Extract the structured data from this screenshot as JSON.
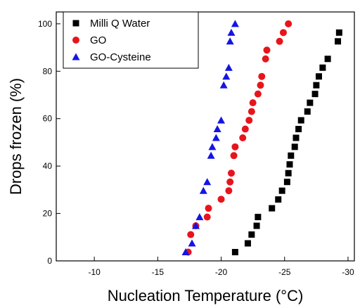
{
  "chart_data": {
    "type": "scatter",
    "xlabel": "Nucleation Temperature (°C)",
    "ylabel": "Drops frozen (%)",
    "xlim": [
      -7,
      -30.5
    ],
    "ylim": [
      0,
      105
    ],
    "x_ticks": [
      -10,
      -15,
      -20,
      -25,
      -30
    ],
    "y_ticks": [
      0,
      20,
      40,
      60,
      80,
      100
    ],
    "legend_position": "top-left",
    "series": [
      {
        "name": "Milli Q Water",
        "color": "#000000",
        "marker": "square",
        "points": [
          [
            -21.1,
            3.7
          ],
          [
            -22.1,
            7.4
          ],
          [
            -22.4,
            11.1
          ],
          [
            -22.8,
            14.8
          ],
          [
            -22.9,
            18.5
          ],
          [
            -24.0,
            22.2
          ],
          [
            -24.5,
            25.9
          ],
          [
            -24.8,
            29.6
          ],
          [
            -25.2,
            33.3
          ],
          [
            -25.3,
            37.0
          ],
          [
            -25.4,
            40.7
          ],
          [
            -25.5,
            44.4
          ],
          [
            -25.8,
            48.1
          ],
          [
            -25.9,
            51.9
          ],
          [
            -26.1,
            55.6
          ],
          [
            -26.3,
            59.3
          ],
          [
            -26.8,
            63.0
          ],
          [
            -27.0,
            66.7
          ],
          [
            -27.4,
            70.4
          ],
          [
            -27.5,
            74.1
          ],
          [
            -27.7,
            77.8
          ],
          [
            -28.0,
            81.5
          ],
          [
            -28.4,
            85.2
          ],
          [
            -29.2,
            92.6
          ],
          [
            -29.3,
            96.3
          ]
        ]
      },
      {
        "name": "GO",
        "color": "#e8141c",
        "marker": "circle",
        "points": [
          [
            -17.4,
            3.7
          ],
          [
            -17.6,
            11.1
          ],
          [
            -18.0,
            14.8
          ],
          [
            -18.9,
            18.5
          ],
          [
            -19.0,
            22.2
          ],
          [
            -20.0,
            26.0
          ],
          [
            -20.6,
            29.6
          ],
          [
            -20.7,
            33.3
          ],
          [
            -20.8,
            37.0
          ],
          [
            -21.0,
            44.4
          ],
          [
            -21.1,
            48.1
          ],
          [
            -21.7,
            51.9
          ],
          [
            -21.9,
            55.6
          ],
          [
            -22.2,
            59.3
          ],
          [
            -22.4,
            63.0
          ],
          [
            -22.5,
            66.7
          ],
          [
            -22.9,
            70.4
          ],
          [
            -23.1,
            74.1
          ],
          [
            -23.2,
            77.8
          ],
          [
            -23.5,
            85.2
          ],
          [
            -23.6,
            88.9
          ],
          [
            -24.6,
            92.6
          ],
          [
            -24.9,
            96.3
          ],
          [
            -25.3,
            100.0
          ]
        ]
      },
      {
        "name": "GO-Cysteine",
        "color": "#1414e6",
        "marker": "triangle",
        "points": [
          [
            -17.2,
            3.7
          ],
          [
            -17.7,
            7.4
          ],
          [
            -18.0,
            14.8
          ],
          [
            -18.3,
            18.5
          ],
          [
            -18.6,
            29.6
          ],
          [
            -18.9,
            33.3
          ],
          [
            -19.2,
            44.4
          ],
          [
            -19.3,
            48.1
          ],
          [
            -19.6,
            51.9
          ],
          [
            -19.7,
            55.6
          ],
          [
            -20.0,
            59.3
          ],
          [
            -20.2,
            74.1
          ],
          [
            -20.4,
            77.8
          ],
          [
            -20.6,
            81.5
          ],
          [
            -20.7,
            92.6
          ],
          [
            -20.8,
            96.3
          ],
          [
            -21.1,
            100.0
          ]
        ]
      }
    ]
  }
}
